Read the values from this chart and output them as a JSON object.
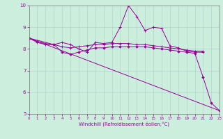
{
  "title": "",
  "xlabel": "Windchill (Refroidissement éolien,°C)",
  "background_color": "#cceedd",
  "grid_color": "#aacccc",
  "line_color": "#990099",
  "xlim": [
    0,
    23
  ],
  "ylim": [
    5,
    10
  ],
  "yticks": [
    5,
    6,
    7,
    8,
    9,
    10
  ],
  "xticks": [
    0,
    1,
    2,
    3,
    4,
    5,
    6,
    7,
    8,
    9,
    10,
    11,
    12,
    13,
    14,
    15,
    16,
    17,
    18,
    19,
    20,
    21,
    22,
    23
  ],
  "series1_x": [
    0,
    1,
    2,
    3,
    4,
    5,
    6,
    7,
    8,
    9,
    10,
    11,
    12,
    13,
    14,
    15,
    16,
    17,
    18,
    19,
    20,
    21
  ],
  "series1_y": [
    8.5,
    8.3,
    8.2,
    8.2,
    8.3,
    8.2,
    8.0,
    7.85,
    8.3,
    8.25,
    8.3,
    9.0,
    10.0,
    9.5,
    8.85,
    9.0,
    8.95,
    8.15,
    8.05,
    7.9,
    7.85,
    7.85
  ],
  "series2_x": [
    0,
    1,
    2,
    3,
    4,
    5,
    6,
    7,
    8,
    9,
    10,
    11,
    12,
    13,
    14,
    15,
    16,
    17,
    18,
    19,
    20,
    21
  ],
  "series2_y": [
    8.5,
    8.35,
    8.25,
    8.2,
    8.1,
    8.05,
    8.1,
    8.15,
    8.2,
    8.2,
    8.25,
    8.25,
    8.25,
    8.2,
    8.2,
    8.15,
    8.1,
    8.05,
    8.0,
    7.95,
    7.9,
    7.9
  ],
  "series3_x": [
    0,
    3,
    4,
    5,
    6,
    7,
    8,
    9,
    10,
    11,
    12,
    13,
    14,
    15,
    16,
    17,
    18,
    19,
    20,
    21,
    22,
    23
  ],
  "series3_y": [
    8.5,
    8.2,
    7.85,
    7.75,
    7.85,
    7.95,
    8.05,
    8.05,
    8.1,
    8.1,
    8.1,
    8.1,
    8.1,
    8.05,
    8.0,
    7.95,
    7.9,
    7.85,
    7.8,
    6.7,
    5.5,
    5.15
  ],
  "series4_x": [
    0,
    23
  ],
  "series4_y": [
    8.5,
    5.15
  ]
}
